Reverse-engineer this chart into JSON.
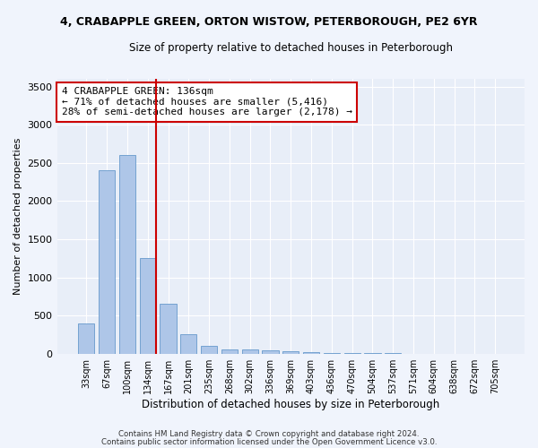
{
  "title": "4, CRABAPPLE GREEN, ORTON WISTOW, PETERBOROUGH, PE2 6YR",
  "subtitle": "Size of property relative to detached houses in Peterborough",
  "xlabel": "Distribution of detached houses by size in Peterborough",
  "ylabel": "Number of detached properties",
  "categories": [
    "33sqm",
    "67sqm",
    "100sqm",
    "134sqm",
    "167sqm",
    "201sqm",
    "235sqm",
    "268sqm",
    "302sqm",
    "336sqm",
    "369sqm",
    "403sqm",
    "436sqm",
    "470sqm",
    "504sqm",
    "537sqm",
    "571sqm",
    "604sqm",
    "638sqm",
    "672sqm",
    "705sqm"
  ],
  "values": [
    390,
    2400,
    2600,
    1250,
    650,
    250,
    100,
    60,
    60,
    40,
    30,
    15,
    10,
    8,
    5,
    3,
    2,
    2,
    1,
    1,
    0
  ],
  "bar_color": "#aec6e8",
  "bar_edge_color": "#6699cc",
  "highlight_index": 3,
  "annotation_text": "4 CRABAPPLE GREEN: 136sqm\n← 71% of detached houses are smaller (5,416)\n28% of semi-detached houses are larger (2,178) →",
  "annotation_box_color": "#ffffff",
  "annotation_border_color": "#cc0000",
  "ylim": [
    0,
    3600
  ],
  "yticks": [
    0,
    500,
    1000,
    1500,
    2000,
    2500,
    3000,
    3500
  ],
  "background_color": "#e8eef8",
  "grid_color": "#ffffff",
  "fig_background": "#f0f4fc",
  "footer_line1": "Contains HM Land Registry data © Crown copyright and database right 2024.",
  "footer_line2": "Contains public sector information licensed under the Open Government Licence v3.0."
}
